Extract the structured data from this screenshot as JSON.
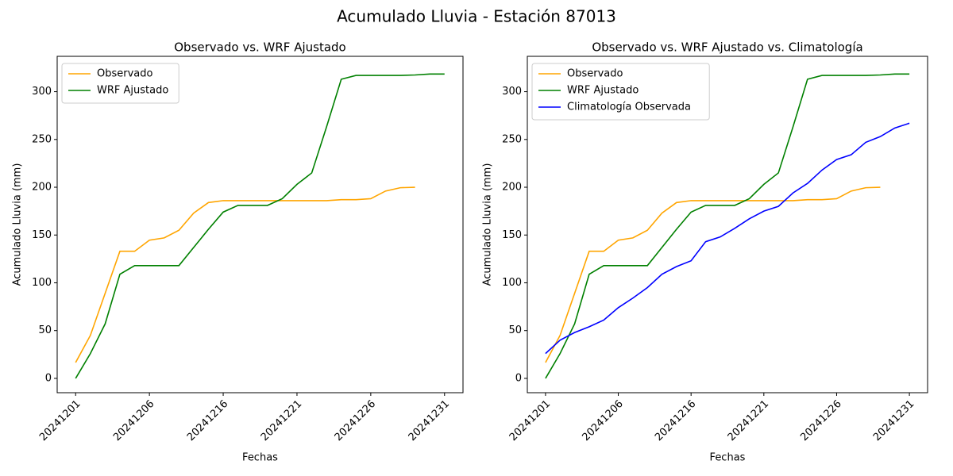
{
  "title": "Acumulado Lluvia - Estación 87013",
  "chart_data": [
    {
      "type": "line",
      "title": "Observado vs. WRF Ajustado",
      "xlabel": "Fechas",
      "ylabel": "Acumulado Lluvia (mm)",
      "categories": [
        "20241201",
        null,
        null,
        null,
        null,
        "20241206",
        null,
        null,
        null,
        null,
        "20241216",
        null,
        null,
        null,
        null,
        "20241221",
        null,
        null,
        null,
        null,
        "20241226",
        null,
        null,
        null,
        null,
        "20241231"
      ],
      "series": [
        {
          "name": "Observado",
          "color": "orange",
          "values": [
            16.6,
            45,
            89,
            133,
            133,
            144.6,
            147,
            155,
            173,
            184,
            186,
            186,
            186,
            186,
            186,
            186,
            186,
            186,
            187,
            187,
            188,
            196,
            199.5,
            200,
            null,
            null
          ]
        },
        {
          "name": "WRF Ajustado",
          "color": "green",
          "values": [
            0,
            26,
            57,
            109,
            118,
            118,
            118,
            118,
            137,
            156,
            174,
            181,
            181,
            181,
            188,
            203,
            215,
            263,
            313,
            317,
            317,
            317,
            317,
            317.5,
            318.5,
            318.5
          ]
        }
      ],
      "ylim": [
        -15,
        337
      ],
      "yticks": [
        0,
        50,
        100,
        150,
        200,
        250,
        300
      ],
      "legend": "upper left"
    },
    {
      "type": "line",
      "title": "Observado vs. WRF Ajustado vs. Climatología",
      "xlabel": "Fechas",
      "ylabel": "Acumulado Lluvia (mm)",
      "categories": [
        "20241201",
        null,
        null,
        null,
        null,
        "20241206",
        null,
        null,
        null,
        null,
        "20241216",
        null,
        null,
        null,
        null,
        "20241221",
        null,
        null,
        null,
        null,
        "20241226",
        null,
        null,
        null,
        null,
        "20241231"
      ],
      "series": [
        {
          "name": "Observado",
          "color": "orange",
          "values": [
            16.6,
            45,
            89,
            133,
            133,
            144.6,
            147,
            155,
            173,
            184,
            186,
            186,
            186,
            186,
            186,
            186,
            186,
            186,
            187,
            187,
            188,
            196,
            199.5,
            200,
            null,
            null
          ]
        },
        {
          "name": "WRF Ajustado",
          "color": "green",
          "values": [
            0,
            26,
            57,
            109,
            118,
            118,
            118,
            118,
            137,
            156,
            174,
            181,
            181,
            181,
            188,
            203,
            215,
            263,
            313,
            317,
            317,
            317,
            317,
            317.5,
            318.5,
            318.5
          ]
        },
        {
          "name": "Climatología Observada",
          "color": "blue",
          "values": [
            26,
            40,
            48,
            54,
            61,
            74,
            84,
            95,
            109,
            117,
            123,
            143,
            148,
            157,
            167,
            175,
            180,
            194,
            204,
            218,
            229,
            234,
            247,
            253,
            262,
            267
          ]
        }
      ],
      "ylim": [
        -15,
        337
      ],
      "yticks": [
        0,
        50,
        100,
        150,
        200,
        250,
        300
      ],
      "legend": "upper left"
    }
  ]
}
